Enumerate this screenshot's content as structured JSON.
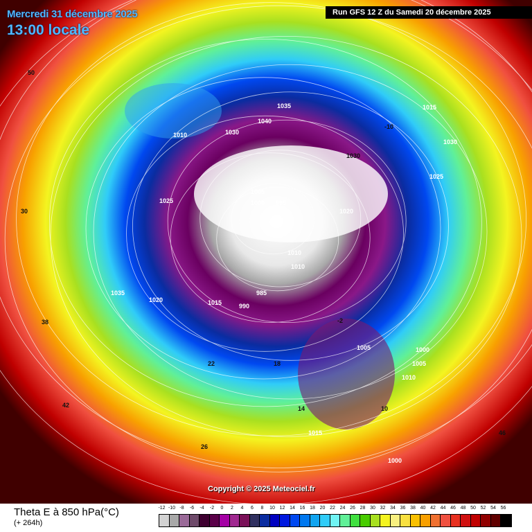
{
  "header": {
    "date": "Mercredi 31 décembre 2025",
    "time": "13:00 locale",
    "run": "Run GFS 12 Z du Samedi 20 décembre 2025"
  },
  "copyright": "Copyright © 2025 Meteociel.fr",
  "legend": {
    "title": "Theta E à 850 hPa(°C)",
    "subtitle": "(+ 264h)",
    "ticks": [
      "-12",
      "-10",
      "-8",
      "-6",
      "-4",
      "-2",
      "0",
      "2",
      "4",
      "6",
      "8",
      "10",
      "12",
      "14",
      "16",
      "18",
      "20",
      "22",
      "24",
      "26",
      "28",
      "30",
      "32",
      "34",
      "36",
      "38",
      "40",
      "42",
      "44",
      "46",
      "48",
      "50",
      "52",
      "54",
      "56"
    ],
    "colors": [
      "#d2d2d2",
      "#a8a8a8",
      "#9a6a98",
      "#6e4a6a",
      "#3e0030",
      "#5a0048",
      "#a400a4",
      "#a02890",
      "#7a1058",
      "#303060",
      "#0a2ca0",
      "#0000c0",
      "#0018e0",
      "#0048f0",
      "#0078f0",
      "#10a4f0",
      "#30ccf8",
      "#70f4f4",
      "#60f098",
      "#40e040",
      "#48cc00",
      "#a8e020",
      "#f4f420",
      "#f8f080",
      "#f8e040",
      "#f8c000",
      "#f8a000",
      "#f07030",
      "#f05040",
      "#e83020",
      "#d01010",
      "#c00000",
      "#900000",
      "#600000",
      "#000000"
    ]
  },
  "map_labels": [
    "1030",
    "1035",
    "1040",
    "1030",
    "1025",
    "1005",
    "1000",
    "995",
    "1020",
    "1010",
    "1010",
    "1015",
    "1035",
    "1020",
    "985",
    "990",
    "1005",
    "1000",
    "1015",
    "1030",
    "1025",
    "1010",
    "1015",
    "1000",
    "1005",
    "1010",
    "42",
    "38",
    "30",
    "26",
    "22",
    "18",
    "14",
    "10",
    "-2",
    "-10",
    "46",
    "50"
  ]
}
